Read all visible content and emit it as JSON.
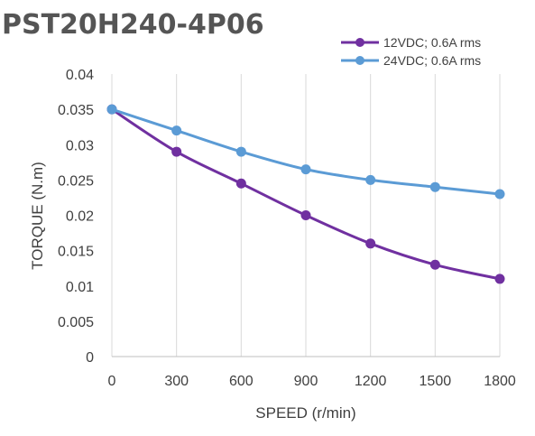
{
  "chart_data": {
    "type": "line",
    "title": "PST20H240-4P06",
    "xlabel": "SPEED (r/min)",
    "ylabel": "TORQUE (N.m)",
    "x": [
      0,
      300,
      600,
      900,
      1200,
      1500,
      1800
    ],
    "x_tick_labels": [
      "0",
      "300",
      "600",
      "900",
      "1200",
      "1500",
      "1800"
    ],
    "xlim": [
      0,
      1800
    ],
    "ylim": [
      0,
      0.04
    ],
    "y_ticks": [
      0,
      0.005,
      0.01,
      0.015,
      0.02,
      0.025,
      0.03,
      0.035,
      0.04
    ],
    "y_tick_labels": [
      "0",
      "0.005",
      "0.01",
      "0.015",
      "0.02",
      "0.025",
      "0.03",
      "0.035",
      "0.04"
    ],
    "grid": "vertical",
    "legend_position": "top-right",
    "series": [
      {
        "name": "12VDC; 0.6A rms",
        "color": "#7030a0",
        "values": [
          0.035,
          0.029,
          0.0245,
          0.02,
          0.016,
          0.013,
          0.011
        ]
      },
      {
        "name": "24VDC; 0.6A rms",
        "color": "#5b9bd5",
        "values": [
          0.035,
          0.032,
          0.029,
          0.0265,
          0.025,
          0.024,
          0.023
        ]
      }
    ]
  }
}
